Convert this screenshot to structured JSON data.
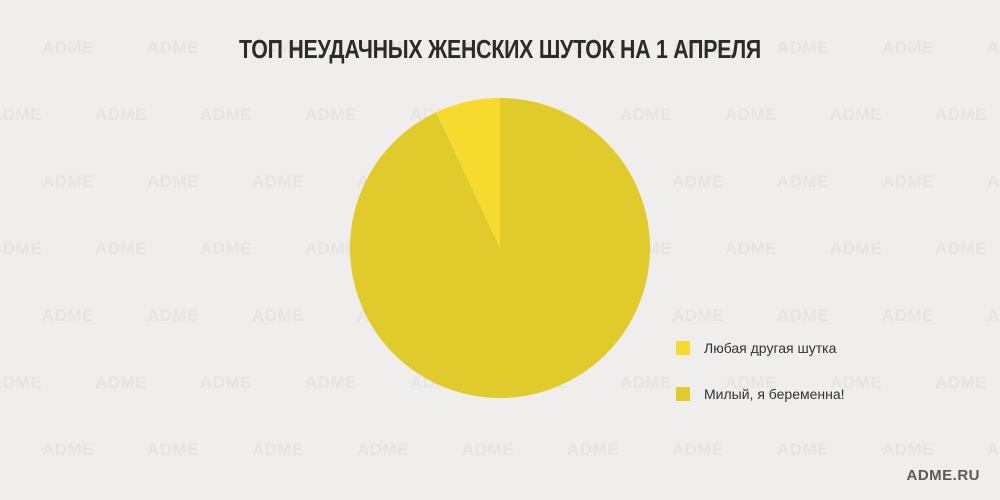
{
  "watermark_text": "ADME",
  "brand": "ADME.RU",
  "colors": {
    "background": "#efeeec",
    "slice_joke": "#f7da2e",
    "slice_pregnant": "#e1cb2c",
    "title": "#2b2b2b"
  },
  "chart_data": {
    "type": "pie",
    "title": "ТОП НЕУДАЧНЫХ ЖЕНСКИХ ШУТОК НА 1 АПРЕЛЯ",
    "legend_position": "right",
    "slices": [
      {
        "label": "Любая другая шутка",
        "value": 7,
        "color": "#f7da2e"
      },
      {
        "label": "Милый, я беременна!",
        "value": 93,
        "color": "#e1cb2c"
      }
    ]
  }
}
